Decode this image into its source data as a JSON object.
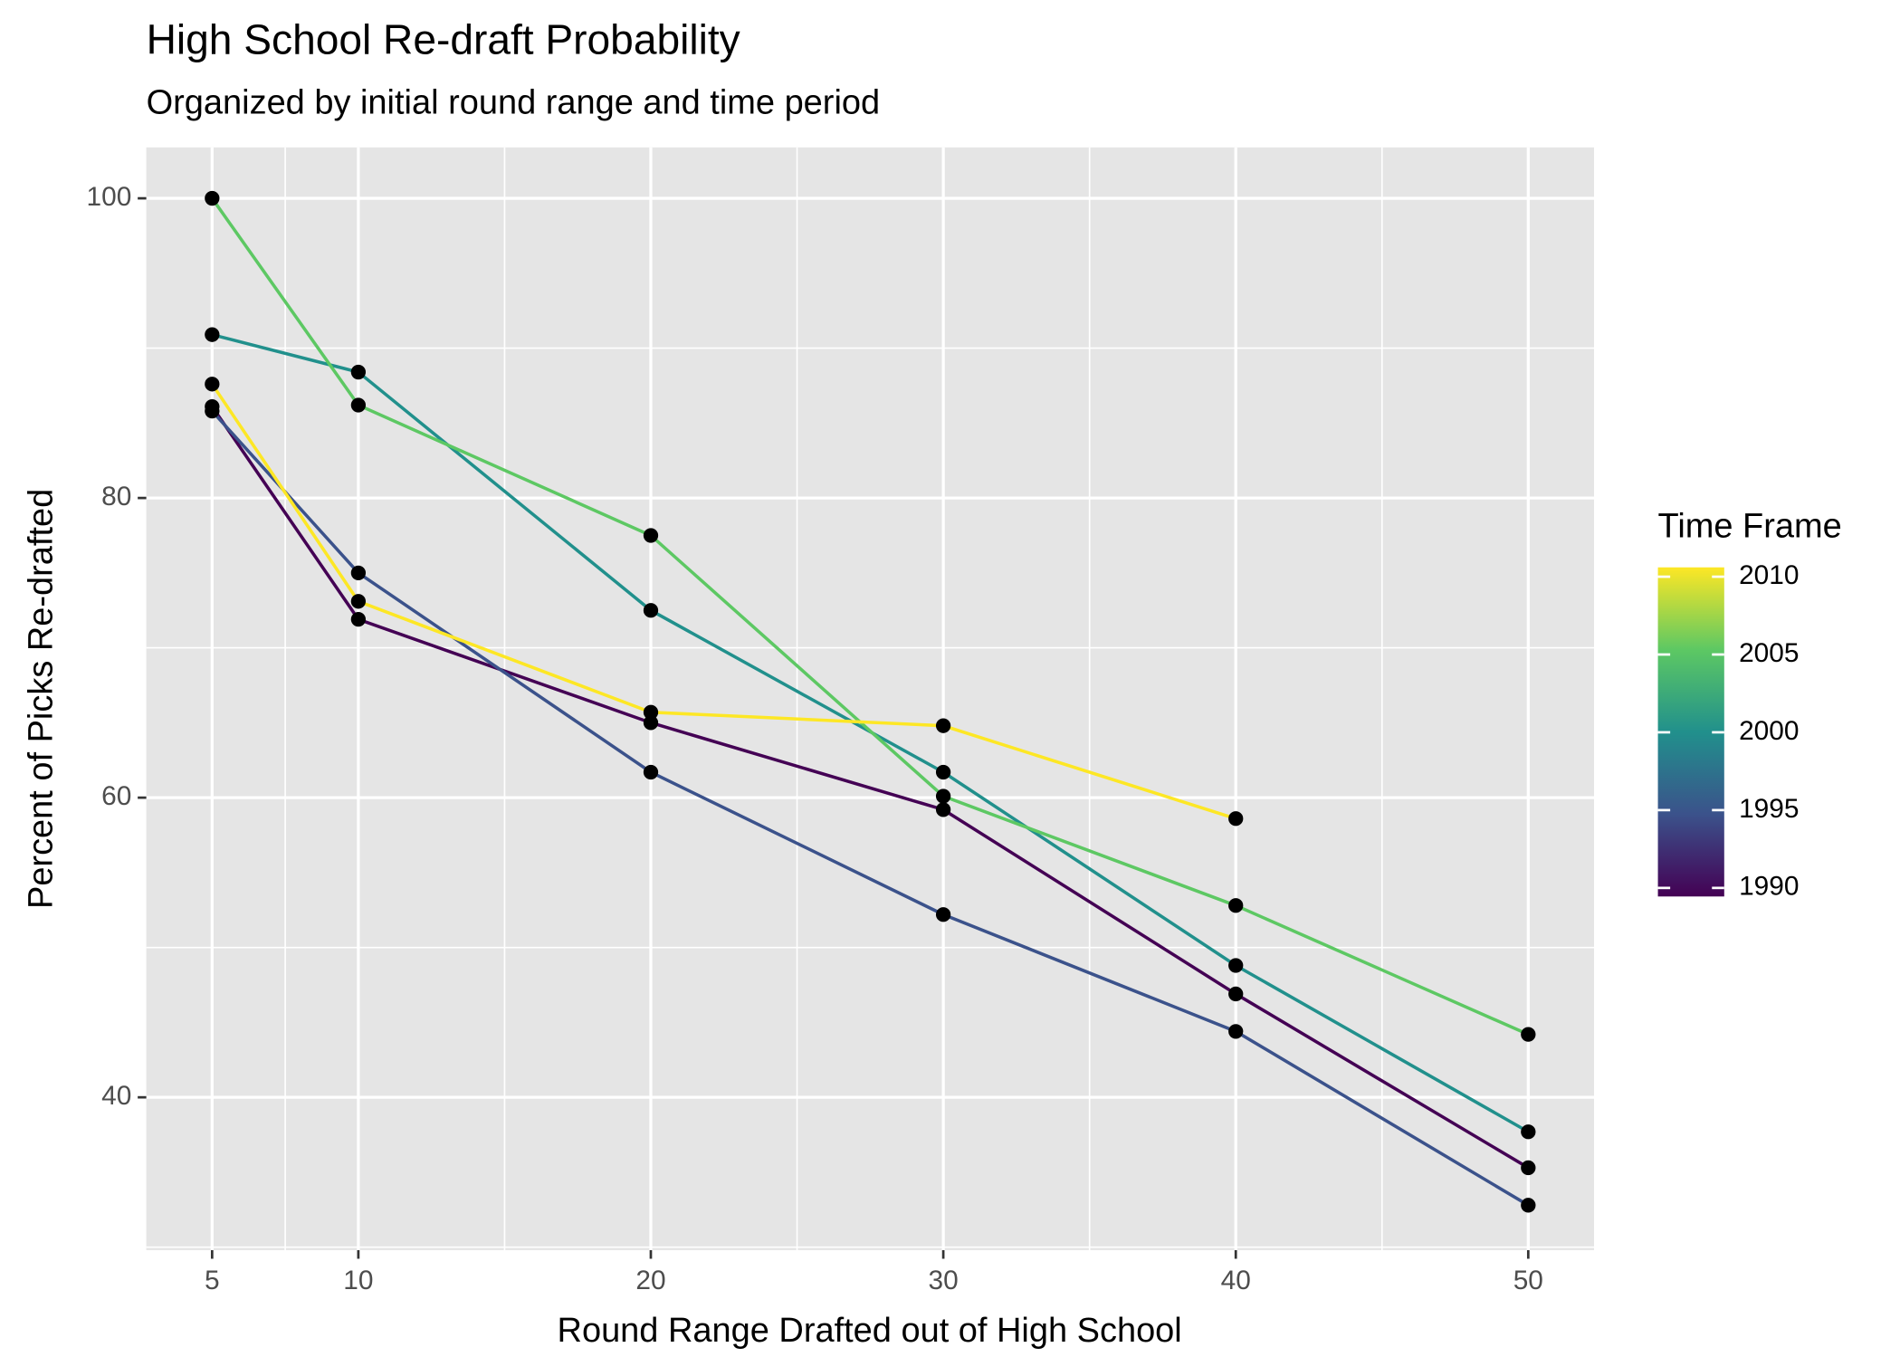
{
  "chart_data": {
    "type": "line",
    "title": "High School Re-draft Probability",
    "subtitle": "Organized by initial round range and time period",
    "x_label": "Round Range Drafted out of High School",
    "y_label": "Percent of Picks Re-drafted",
    "x": [
      5,
      10,
      20,
      30,
      40,
      50
    ],
    "series": [
      {
        "color": "#440154",
        "values": [
          86.1,
          71.9,
          65.0,
          59.2,
          46.9,
          35.3
        ]
      },
      {
        "color": "#3b528b",
        "values": [
          85.8,
          75.0,
          61.7,
          52.2,
          44.4,
          32.8
        ]
      },
      {
        "color": "#21908c",
        "values": [
          90.9,
          88.4,
          72.5,
          61.7,
          48.8,
          37.7
        ]
      },
      {
        "color": "#5dc863",
        "values": [
          100,
          86.2,
          77.5,
          60.1,
          52.8,
          44.2
        ]
      },
      {
        "color": "#fde725",
        "values": [
          87.6,
          73.1,
          65.7,
          64.8,
          58.6,
          null
        ]
      }
    ],
    "point_color": "#000000",
    "xlim": [
      2.75,
      52.25
    ],
    "ylim": [
      29.8,
      103.4
    ],
    "xticks": [
      5,
      10,
      20,
      30,
      40,
      50
    ],
    "yticks": [
      40,
      60,
      80,
      100
    ],
    "x_minor_grid": [
      7.5,
      15,
      25,
      35,
      45
    ],
    "y_minor_grid": [
      30,
      50,
      70,
      90
    ],
    "grid": true,
    "legend": {
      "title": "Time Frame",
      "ticks": [
        1990,
        1995,
        2000,
        2005,
        2010
      ],
      "lim": [
        1989.45,
        2010.6
      ],
      "colors": [
        "#440154",
        "#3b528b",
        "#21908c",
        "#5dc863",
        "#fde725"
      ]
    }
  }
}
